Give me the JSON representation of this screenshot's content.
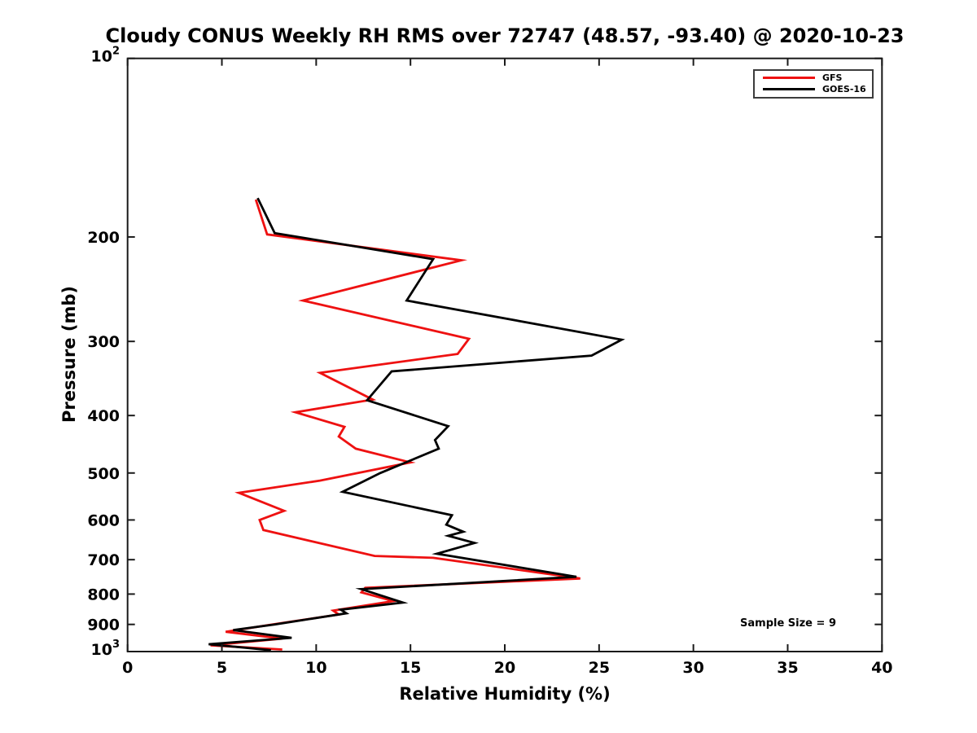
{
  "chart_data": {
    "type": "line",
    "title": "Cloudy CONUS Weekly RH RMS over 72747 (48.57, -93.40) @ 2020-10-23",
    "xlabel": "Relative Humidity (%)",
    "ylabel": "Pressure (mb)",
    "xlim": [
      0,
      40
    ],
    "xticks": [
      0,
      5,
      10,
      15,
      20,
      25,
      30,
      35,
      40
    ],
    "ylim": [
      100,
      1000
    ],
    "yscale": "log",
    "y_direction": "increasing-downward",
    "yticks": [
      {
        "v": 100,
        "label": "10^2"
      },
      {
        "v": 200,
        "label": "200"
      },
      {
        "v": 300,
        "label": "300"
      },
      {
        "v": 400,
        "label": "400"
      },
      {
        "v": 500,
        "label": "500"
      },
      {
        "v": 600,
        "label": "600"
      },
      {
        "v": 700,
        "label": "700"
      },
      {
        "v": 800,
        "label": "800"
      },
      {
        "v": 900,
        "label": "900"
      },
      {
        "v": 1000,
        "label": "10^3"
      }
    ],
    "grid": "off",
    "legend_position": "top-right",
    "annotation": "Sample Size = 9",
    "frame_color": "#1a1a1a",
    "series": [
      {
        "name": "GFS",
        "color": "#ee1111",
        "points_format": "[relative_humidity_percent, pressure_mb]",
        "points": [
          [
            6.8,
            173
          ],
          [
            7.4,
            198
          ],
          [
            17.7,
            219
          ],
          [
            9.3,
            256
          ],
          [
            18.1,
            297
          ],
          [
            17.5,
            315
          ],
          [
            10.2,
            339
          ],
          [
            13.0,
            376
          ],
          [
            8.9,
            395
          ],
          [
            11.5,
            418
          ],
          [
            11.2,
            434
          ],
          [
            12.1,
            455
          ],
          [
            15.0,
            480
          ],
          [
            10.2,
            515
          ],
          [
            5.9,
            540
          ],
          [
            8.3,
            579
          ],
          [
            7.0,
            600
          ],
          [
            7.2,
            624
          ],
          [
            13.1,
            690
          ],
          [
            16.2,
            695
          ],
          [
            24.0,
            753
          ],
          [
            12.6,
            781
          ],
          [
            12.4,
            795
          ],
          [
            14.1,
            822
          ],
          [
            10.9,
            853
          ],
          [
            11.2,
            866
          ],
          [
            7.4,
            903
          ],
          [
            5.2,
            926
          ],
          [
            8.2,
            951
          ],
          [
            4.4,
            976
          ],
          [
            8.2,
            992
          ]
        ]
      },
      {
        "name": "GOES-16",
        "color": "#000000",
        "points_format": "[relative_humidity_percent, pressure_mb]",
        "points": [
          [
            6.9,
            172
          ],
          [
            7.8,
            197
          ],
          [
            16.2,
            218
          ],
          [
            14.8,
            256
          ],
          [
            26.2,
            298
          ],
          [
            24.6,
            317
          ],
          [
            14.0,
            337
          ],
          [
            12.7,
            377
          ],
          [
            17.0,
            417
          ],
          [
            16.3,
            440
          ],
          [
            16.5,
            455
          ],
          [
            13.4,
            500
          ],
          [
            11.4,
            538
          ],
          [
            17.2,
            589
          ],
          [
            16.9,
            611
          ],
          [
            17.8,
            628
          ],
          [
            17.0,
            638
          ],
          [
            18.4,
            656
          ],
          [
            16.4,
            684
          ],
          [
            23.8,
            748
          ],
          [
            12.4,
            785
          ],
          [
            14.6,
            827
          ],
          [
            11.3,
            850
          ],
          [
            11.6,
            862
          ],
          [
            7.8,
            900
          ],
          [
            5.6,
            920
          ],
          [
            8.7,
            948
          ],
          [
            4.3,
            972
          ],
          [
            7.6,
            995
          ]
        ]
      }
    ]
  }
}
